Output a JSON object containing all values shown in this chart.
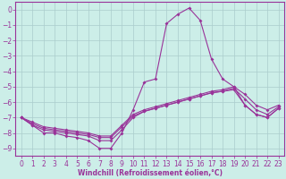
{
  "xlabel": "Windchill (Refroidissement éolien,°C)",
  "background_color": "#cceee8",
  "grid_color": "#aacccc",
  "line_color": "#993399",
  "xlim": [
    -0.5,
    23.5
  ],
  "ylim": [
    -9.5,
    0.5
  ],
  "yticks": [
    0,
    -1,
    -2,
    -3,
    -4,
    -5,
    -6,
    -7,
    -8,
    -9
  ],
  "xticks": [
    0,
    1,
    2,
    3,
    4,
    5,
    6,
    7,
    8,
    9,
    10,
    11,
    12,
    13,
    14,
    15,
    16,
    17,
    18,
    19,
    20,
    21,
    22,
    23
  ],
  "main_y": [
    -7.0,
    -7.5,
    -8.0,
    -8.0,
    -8.2,
    -8.3,
    -8.5,
    -9.0,
    -9.0,
    -8.0,
    -6.5,
    -4.7,
    -4.5,
    -0.9,
    -0.3,
    0.1,
    -0.7,
    -3.2,
    -4.5,
    -5.0,
    -6.2,
    -6.8,
    -7.0,
    -6.4
  ],
  "line2_y": [
    -7.0,
    -7.5,
    -7.8,
    -7.9,
    -8.0,
    -8.1,
    -8.2,
    -8.5,
    -8.5,
    -7.8,
    -7.0,
    -6.6,
    -6.4,
    -6.2,
    -6.0,
    -5.8,
    -5.6,
    -5.4,
    -5.3,
    -5.2,
    -6.2,
    -6.8,
    -7.0,
    -6.4
  ],
  "line3_y": [
    -7.0,
    -7.4,
    -7.7,
    -7.8,
    -7.9,
    -8.0,
    -8.1,
    -8.3,
    -8.3,
    -7.6,
    -6.9,
    -6.6,
    -6.4,
    -6.2,
    -6.0,
    -5.8,
    -5.6,
    -5.4,
    -5.3,
    -5.1,
    -5.8,
    -6.5,
    -6.8,
    -6.3
  ],
  "line4_y": [
    -7.0,
    -7.3,
    -7.6,
    -7.7,
    -7.8,
    -7.9,
    -8.0,
    -8.2,
    -8.2,
    -7.5,
    -6.8,
    -6.5,
    -6.3,
    -6.1,
    -5.9,
    -5.7,
    -5.5,
    -5.3,
    -5.2,
    -5.0,
    -5.5,
    -6.2,
    -6.5,
    -6.2
  ],
  "tick_fontsize": 5.5,
  "xlabel_fontsize": 5.5,
  "linewidth": 0.8,
  "markersize": 2.0
}
